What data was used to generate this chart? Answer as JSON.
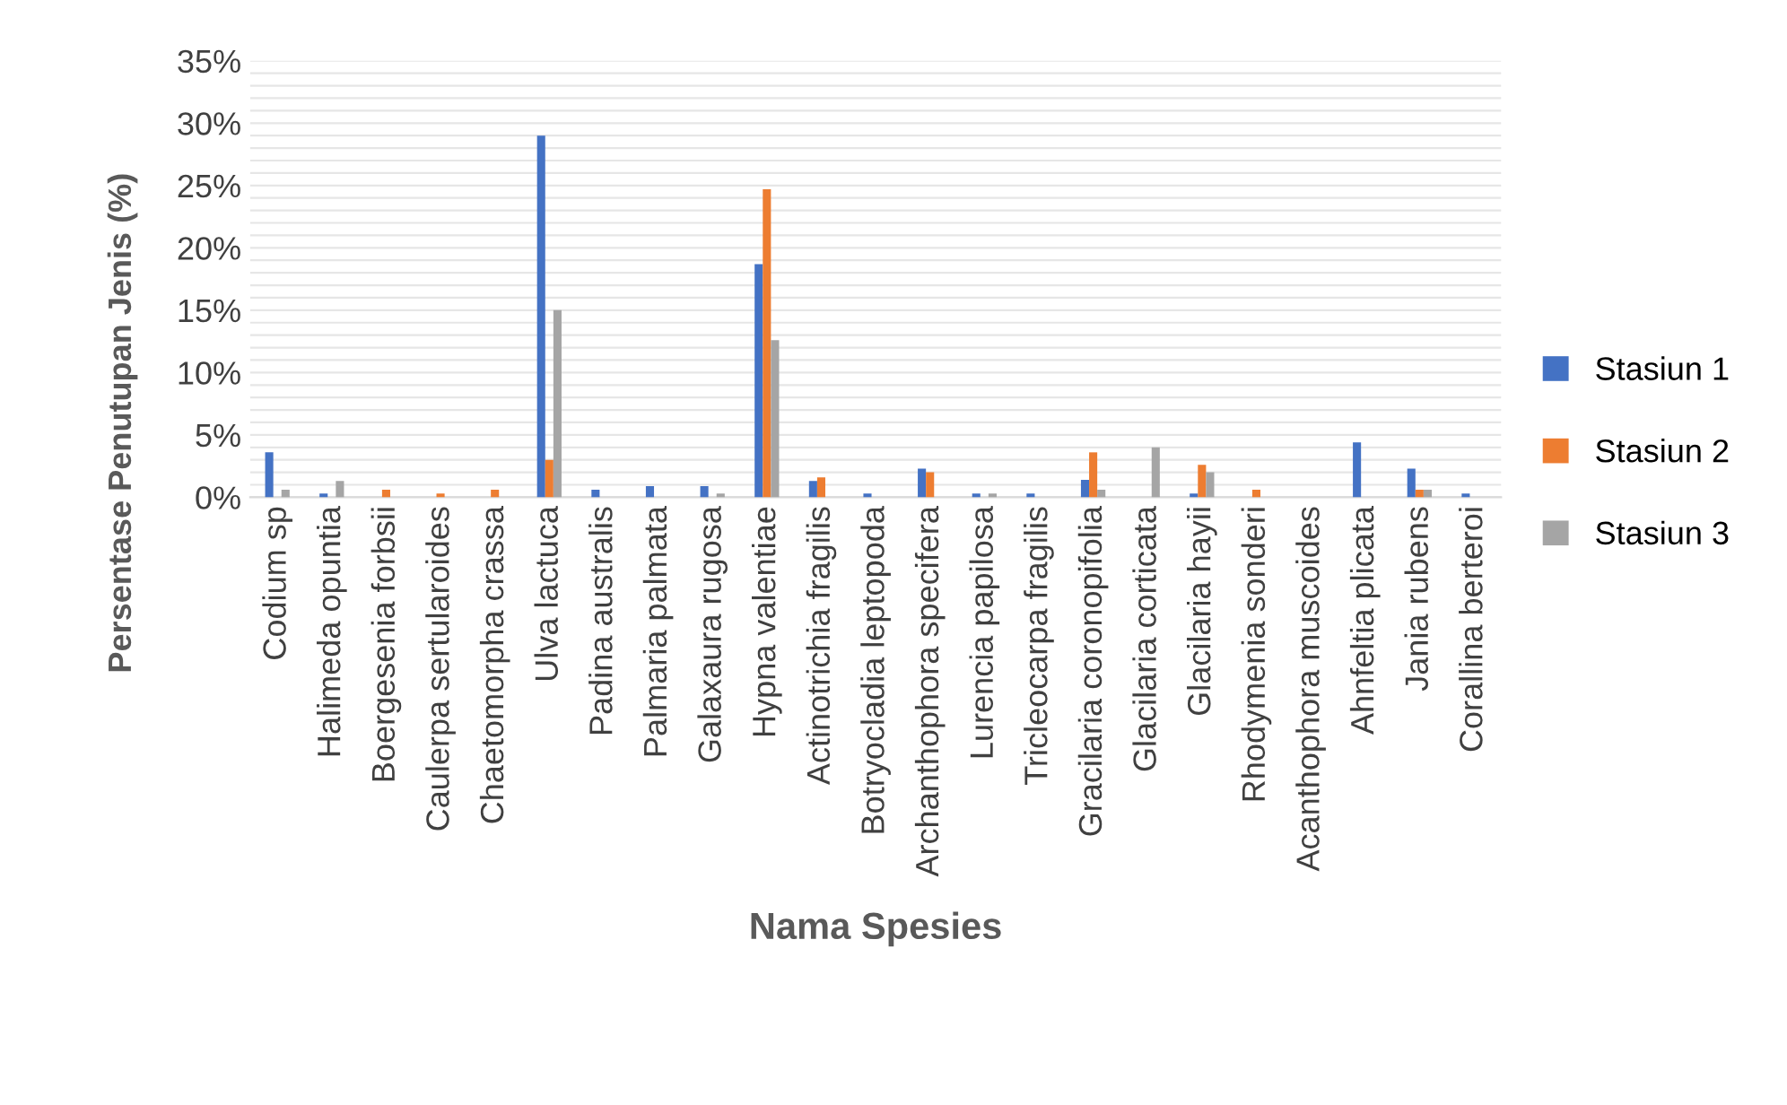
{
  "chart_data": {
    "type": "bar",
    "xlabel": "Nama Spesies",
    "ylabel": "Persentase Penutupan Jenis (%)",
    "categories": [
      "Codium sp",
      "Halimeda opuntia",
      "Boergesenia forbsii",
      "Caulerpa sertularoides",
      "Chaetomorpha crassa",
      "Ulva lactuca",
      "Padina australis",
      "Palmaria palmata",
      "Galaxaura rugosa",
      "Hypna valentiae",
      "Actinotrichia fragilis",
      "Botryocladia leptopoda",
      "Archanthophora specifera",
      "Lurencia papilosa",
      "Tricleocarpa fragilis",
      "Gracilaria coronopifolia",
      "Glacilaria corticata",
      "Glacilaria hayii",
      "Rhodymenia sonderi",
      "Acanthophora muscoides",
      "Ahnfeltia plicata",
      "Jania rubens",
      "Corallina berteroi"
    ],
    "series": [
      {
        "name": "Stasiun 1",
        "color": "#4472c4",
        "values": [
          3.6,
          0.3,
          0,
          0,
          0,
          29.0,
          0.6,
          0.9,
          0.9,
          18.7,
          1.3,
          0.3,
          2.3,
          0.3,
          0.3,
          1.4,
          0,
          0.3,
          0,
          0,
          4.4,
          2.3,
          0.3
        ]
      },
      {
        "name": "Stasiun 2",
        "color": "#ed7d31",
        "values": [
          0,
          0,
          0.6,
          0.3,
          0.6,
          3.0,
          0,
          0,
          0,
          24.7,
          1.6,
          0,
          2.0,
          0,
          0,
          3.6,
          0,
          2.6,
          0.6,
          0,
          0,
          0.6,
          0
        ]
      },
      {
        "name": "Stasiun 3",
        "color": "#a5a5a5",
        "values": [
          0.6,
          1.3,
          0,
          0,
          0,
          15.0,
          0,
          0,
          0.3,
          12.6,
          0,
          0,
          0,
          0.3,
          0,
          0.6,
          4.0,
          2.0,
          0,
          0,
          0,
          0.6,
          0
        ]
      }
    ],
    "ylim": [
      0,
      35
    ],
    "yticks": [
      {
        "value": 0,
        "label": "0%"
      },
      {
        "value": 1,
        "label": null
      },
      {
        "value": 2,
        "label": null
      },
      {
        "value": 3,
        "label": null
      },
      {
        "value": 4,
        "label": null
      },
      {
        "value": 5,
        "label": "5%"
      },
      {
        "value": 6,
        "label": null
      },
      {
        "value": 7,
        "label": null
      },
      {
        "value": 8,
        "label": null
      },
      {
        "value": 9,
        "label": null
      },
      {
        "value": 10,
        "label": "10%"
      },
      {
        "value": 11,
        "label": null
      },
      {
        "value": 12,
        "label": null
      },
      {
        "value": 13,
        "label": null
      },
      {
        "value": 14,
        "label": null
      },
      {
        "value": 15,
        "label": "15%"
      },
      {
        "value": 16,
        "label": null
      },
      {
        "value": 17,
        "label": null
      },
      {
        "value": 18,
        "label": null
      },
      {
        "value": 19,
        "label": null
      },
      {
        "value": 20,
        "label": "20%"
      },
      {
        "value": 21,
        "label": null
      },
      {
        "value": 22,
        "label": null
      },
      {
        "value": 23,
        "label": null
      },
      {
        "value": 24,
        "label": null
      },
      {
        "value": 25,
        "label": "25%"
      },
      {
        "value": 26,
        "label": null
      },
      {
        "value": 27,
        "label": null
      },
      {
        "value": 28,
        "label": null
      },
      {
        "value": 29,
        "label": null
      },
      {
        "value": 30,
        "label": "30%"
      },
      {
        "value": 31,
        "label": null
      },
      {
        "value": 32,
        "label": null
      },
      {
        "value": 33,
        "label": null
      },
      {
        "value": 34,
        "label": null
      },
      {
        "value": 35,
        "label": "35%"
      }
    ],
    "grid": "y",
    "legend": "right"
  }
}
